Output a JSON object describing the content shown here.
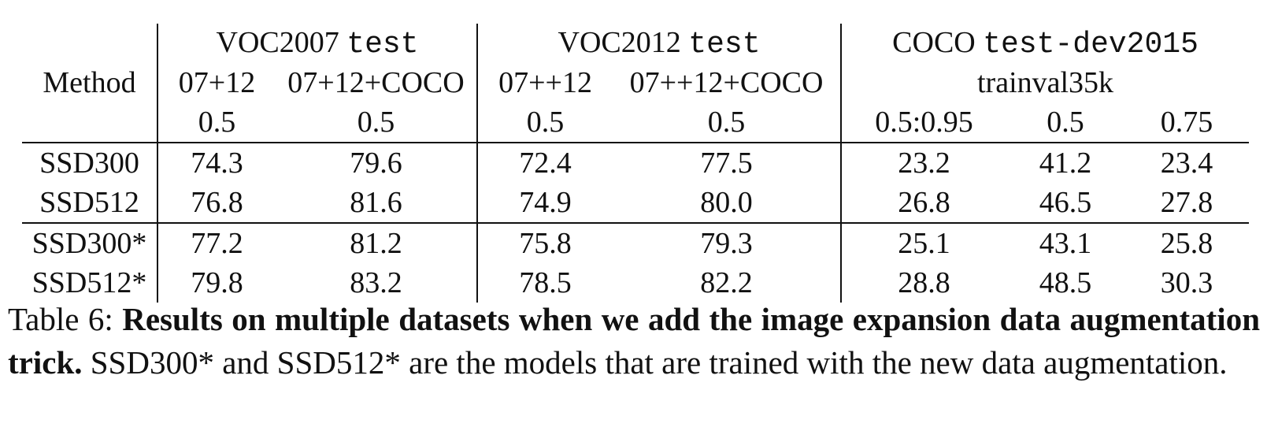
{
  "table": {
    "header": {
      "method_label": "Method",
      "groups": [
        {
          "name": "VOC2007",
          "split": "test"
        },
        {
          "name": "VOC2012",
          "split": "test"
        },
        {
          "name": "COCO",
          "split": "test-dev2015"
        }
      ],
      "train_sets": [
        "07+12",
        "07+12+COCO",
        "07++12",
        "07++12+COCO",
        "trainval35k"
      ],
      "iou": [
        "0.5",
        "0.5",
        "0.5",
        "0.5",
        "0.5:0.95",
        "0.5",
        "0.75"
      ]
    },
    "rows": [
      {
        "method": "SSD300",
        "values": [
          "74.3",
          "79.6",
          "72.4",
          "77.5",
          "23.2",
          "41.2",
          "23.4"
        ],
        "bold": false
      },
      {
        "method": "SSD512",
        "values": [
          "76.8",
          "81.6",
          "74.9",
          "80.0",
          "26.8",
          "46.5",
          "27.8"
        ],
        "bold": false
      },
      {
        "method": "SSD300*",
        "values": [
          "77.2",
          "81.2",
          "75.8",
          "79.3",
          "25.1",
          "43.1",
          "25.8"
        ],
        "bold": false
      },
      {
        "method": "SSD512*",
        "values": [
          "79.8",
          "83.2",
          "78.5",
          "82.2",
          "28.8",
          "48.5",
          "30.3"
        ],
        "bold": true
      }
    ]
  },
  "caption": {
    "label": "Table 6: ",
    "bold_text": "Results on multiple datasets when we add the image expansion data augmentation trick.",
    "text": " SSD300* and SSD512* are the models that are trained with the new data augmentation."
  }
}
